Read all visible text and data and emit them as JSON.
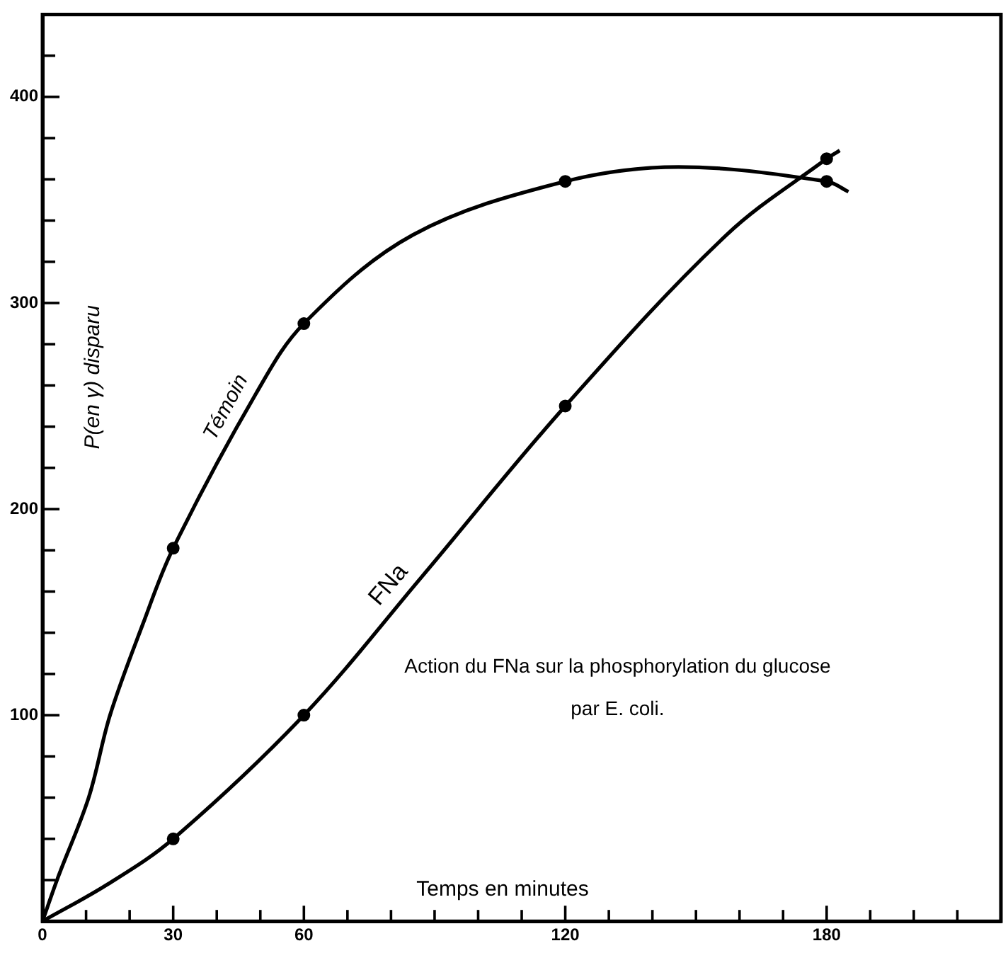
{
  "chart_data": {
    "type": "line",
    "xlabel": "Temps en minutes",
    "ylabel": "P(en γ) disparu",
    "xlim": [
      0,
      220
    ],
    "ylim": [
      0,
      440
    ],
    "xticks": [
      0,
      {
        "value": 10,
        "label": null
      },
      {
        "value": 20,
        "label": null
      },
      30,
      {
        "value": 40,
        "label": null
      },
      {
        "value": 50,
        "label": null
      },
      60,
      {
        "value": 70,
        "label": null
      },
      {
        "value": 80,
        "label": null
      },
      {
        "value": 90,
        "label": null
      },
      {
        "value": 100,
        "label": null
      },
      {
        "value": 110,
        "label": null
      },
      120,
      {
        "value": 130,
        "label": null
      },
      {
        "value": 140,
        "label": null
      },
      {
        "value": 150,
        "label": null
      },
      {
        "value": 160,
        "label": null
      },
      {
        "value": 170,
        "label": null
      },
      180,
      {
        "value": 190,
        "label": null
      },
      {
        "value": 200,
        "label": null
      },
      {
        "value": 210,
        "label": null
      }
    ],
    "yticks": [
      {
        "value": 0,
        "label": null
      },
      {
        "value": 20,
        "label": null
      },
      {
        "value": 40,
        "label": null
      },
      {
        "value": 60,
        "label": null
      },
      {
        "value": 80,
        "label": null
      },
      100,
      {
        "value": 120,
        "label": null
      },
      {
        "value": 140,
        "label": null
      },
      {
        "value": 160,
        "label": null
      },
      {
        "value": 180,
        "label": null
      },
      200,
      {
        "value": 220,
        "label": null
      },
      {
        "value": 240,
        "label": null
      },
      {
        "value": 260,
        "label": null
      },
      {
        "value": 280,
        "label": null
      },
      300,
      {
        "value": 320,
        "label": null
      },
      {
        "value": 340,
        "label": null
      },
      {
        "value": 360,
        "label": null
      },
      {
        "value": 380,
        "label": null
      },
      400,
      {
        "value": 420,
        "label": null
      }
    ],
    "grid": false,
    "legend": false,
    "series": [
      {
        "name": "Témoin",
        "marker": "none",
        "color": "#000000",
        "x": [
          0,
          3.5,
          10.6,
          15.5,
          23,
          30,
          49,
          60,
          85,
          120,
          146,
          180,
          185
        ],
        "values": [
          0,
          21,
          60,
          100,
          144,
          181,
          256,
          290,
          333,
          359,
          366,
          359,
          354
        ]
      },
      {
        "name": "FNa",
        "marker": "none",
        "color": "#000000",
        "x": [
          0,
          15,
          30,
          60,
          87,
          120,
          157,
          180,
          183
        ],
        "values": [
          0,
          18,
          40,
          100,
          167,
          250,
          333,
          370,
          374
        ]
      },
      {
        "type": "scatter",
        "marker": "circle",
        "color": "#000000",
        "x": [
          30,
          60,
          120,
          180
        ],
        "values": [
          181,
          290,
          359,
          359
        ]
      },
      {
        "type": "scatter",
        "marker": "circle",
        "color": "#000000",
        "x": [
          30,
          60,
          120,
          180
        ],
        "values": [
          40,
          100,
          250,
          370
        ]
      }
    ],
    "annotations": [
      "Action du FNa sur la phosphorylation du glucose",
      "par E. coli."
    ]
  }
}
